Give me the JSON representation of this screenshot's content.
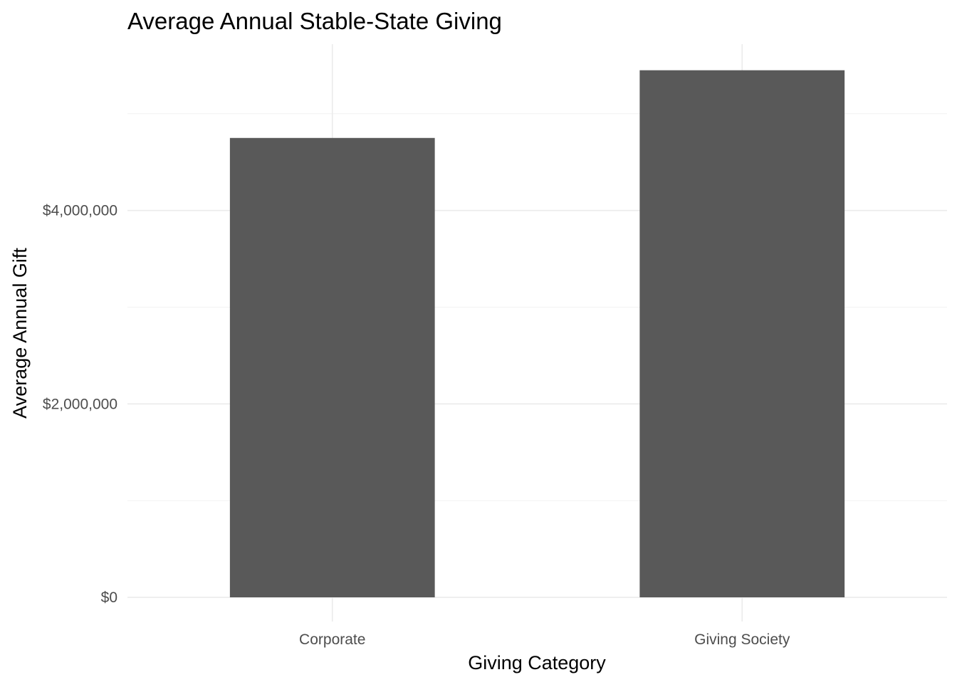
{
  "chart_data": {
    "type": "bar",
    "title": "Average Annual Stable-State Giving",
    "xlabel": "Giving Category",
    "ylabel": "Average Annual Gift",
    "categories": [
      "Corporate",
      "Giving Society"
    ],
    "values": [
      4750000,
      5450000
    ],
    "ylim": [
      -250000,
      5720000
    ],
    "y_ticks": [
      0,
      2000000,
      4000000
    ],
    "y_tick_labels": [
      "$0",
      "$2,000,000",
      "$4,000,000"
    ],
    "y_minor_ticks": [
      1000000,
      3000000,
      5000000
    ],
    "grid": true,
    "legend": "none",
    "theme": "minimal",
    "bar_color": "#595959"
  }
}
